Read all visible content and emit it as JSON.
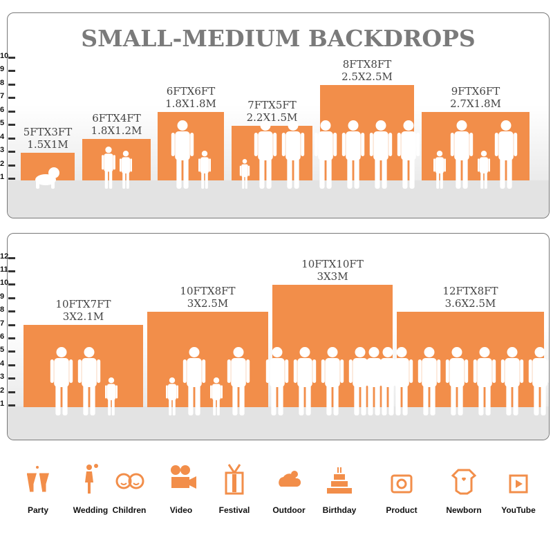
{
  "panel_small": {
    "title": "SMALL-MEDIUM BACKDROPS",
    "scale_ticks": [
      "1",
      "2",
      "3",
      "4",
      "5",
      "6",
      "7",
      "8",
      "9",
      "10"
    ],
    "backdrops": [
      {
        "size_ft": "5FTX3FT",
        "size_m": "1.5X1M",
        "width_ft": 5,
        "height_ft": 3,
        "people": [
          "baby"
        ]
      },
      {
        "size_ft": "6FTX4FT",
        "size_m": "1.8X1.2M",
        "width_ft": 6,
        "height_ft": 4,
        "people": [
          "kid",
          "child"
        ]
      },
      {
        "size_ft": "6FTX6FT",
        "size_m": "1.8X1.8M",
        "width_ft": 6,
        "height_ft": 6,
        "people": [
          "adult",
          "child"
        ]
      },
      {
        "size_ft": "7FTX5FT",
        "size_m": "2.2X1.5M",
        "width_ft": 7,
        "height_ft": 5,
        "people": [
          "toddler",
          "adult",
          "adult"
        ]
      },
      {
        "size_ft": "8FTX8FT",
        "size_m": "2.5X2.5M",
        "width_ft": 8,
        "height_ft": 8,
        "people": [
          "adult",
          "adult",
          "adult",
          "adult"
        ]
      },
      {
        "size_ft": "9FTX6FT",
        "size_m": "2.7X1.8M",
        "width_ft": 9,
        "height_ft": 6,
        "people": [
          "child",
          "adult",
          "child",
          "adult"
        ]
      }
    ]
  },
  "panel_large": {
    "scale_ticks": [
      "1",
      "2",
      "3",
      "4",
      "5",
      "6",
      "7",
      "8",
      "9",
      "10",
      "11",
      "12"
    ],
    "backdrops": [
      {
        "size_ft": "10FTX7FT",
        "size_m": "3X2.1M",
        "width_ft": 10,
        "height_ft": 7,
        "people": [
          "adult",
          "adult",
          "child"
        ]
      },
      {
        "size_ft": "10FTX8FT",
        "size_m": "3X2.5M",
        "width_ft": 10,
        "height_ft": 8,
        "people": [
          "child",
          "adult",
          "child",
          "adult"
        ]
      },
      {
        "size_ft": "10FTX10FT",
        "size_m": "3X3M",
        "width_ft": 10,
        "height_ft": 10,
        "people": [
          "adult",
          "adult",
          "adult",
          "adult",
          "adult"
        ]
      },
      {
        "size_ft": "12FTX8FT",
        "size_m": "3.6X2.5M",
        "width_ft": 12,
        "height_ft": 8,
        "people": [
          "adult",
          "adult",
          "adult",
          "adult",
          "adult",
          "adult",
          "adult",
          "adult"
        ]
      }
    ]
  },
  "uses": [
    {
      "label": "Party",
      "icon": "champagne-glasses-icon"
    },
    {
      "label": "Wedding",
      "icon": "wedding-couple-icon"
    },
    {
      "label": "Children",
      "icon": "children-faces-icon"
    },
    {
      "label": "Video",
      "icon": "film-camera-icon"
    },
    {
      "label": "Festival",
      "icon": "gift-box-icon"
    },
    {
      "label": "Outdoor",
      "icon": "cloud-icon"
    },
    {
      "label": "Birthday",
      "icon": "birthday-cake-icon"
    },
    {
      "label": "Product",
      "icon": "camera-icon"
    },
    {
      "label": "Newborn",
      "icon": "baby-onesie-icon"
    },
    {
      "label": "YouTube",
      "icon": "play-button-icon"
    }
  ],
  "colors": {
    "accent": "#f28e4a",
    "title": "#7a7a7a",
    "label": "#444444"
  }
}
